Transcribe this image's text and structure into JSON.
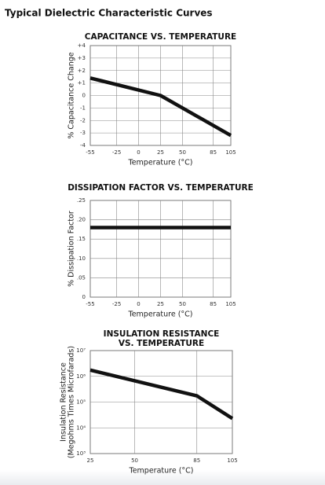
{
  "page_title": "Typical Dielectric Characteristic Curves",
  "chart_data": [
    {
      "type": "line",
      "title": "CAPACITANCE VS. TEMPERATURE",
      "xlabel": "Temperature (°C)",
      "ylabel": [
        "% Capacitance Change"
      ],
      "x": [
        -55,
        25,
        105
      ],
      "values": [
        1.4,
        0,
        -3.2
      ],
      "color": "#111111",
      "xlim": [
        -55,
        105
      ],
      "xticks": [
        -55,
        -25,
        0,
        25,
        50,
        85,
        105
      ],
      "ylim": [
        -4,
        4
      ],
      "yticks": [
        -4,
        -3,
        -2,
        -1,
        0,
        {
          "value": 1,
          "label": "+1"
        },
        {
          "value": 2,
          "label": "+2"
        },
        {
          "value": 3,
          "label": "+3"
        },
        {
          "value": 4,
          "label": "+4"
        }
      ],
      "grid": true
    },
    {
      "type": "line",
      "title": "DISSIPATION FACTOR VS. TEMPERATURE",
      "xlabel": "Temperature (°C)",
      "ylabel": [
        "% Dissipation Factor"
      ],
      "x": [
        -55,
        105
      ],
      "values": [
        0.18,
        0.18
      ],
      "color": "#111111",
      "xlim": [
        -55,
        105
      ],
      "xticks": [
        -55,
        -25,
        0,
        25,
        50,
        85,
        105
      ],
      "ylim": [
        0,
        0.25
      ],
      "yticks": [
        0,
        {
          "value": 0.05,
          "label": ".05"
        },
        {
          "value": 0.1,
          "label": ".10"
        },
        {
          "value": 0.15,
          "label": ".15"
        },
        {
          "value": 0.2,
          "label": ".20"
        },
        {
          "value": 0.25,
          "label": ".25"
        }
      ],
      "grid": true
    },
    {
      "type": "line",
      "title": [
        "INSULATION RESISTANCE",
        "VS. TEMPERATURE"
      ],
      "xlabel": "Temperature (°C)",
      "ylabel": [
        "Insulation Resistance",
        "(Megohms Times Microfarads)"
      ],
      "x": [
        25,
        85,
        105
      ],
      "values": [
        1750000,
        175000,
        23000
      ],
      "color": "#111111",
      "xlim": [
        25,
        105
      ],
      "xticks": [
        25,
        50,
        85,
        105
      ],
      "ylim": [
        1000,
        10000000
      ],
      "log": true,
      "yticks": [
        {
          "value": 1000,
          "label": "10³"
        },
        {
          "value": 10000,
          "label": "10⁴"
        },
        {
          "value": 100000,
          "label": "10⁵"
        },
        {
          "value": 1000000,
          "label": "10⁶"
        },
        {
          "value": 10000000,
          "label": "10⁷"
        }
      ],
      "grid": true
    }
  ]
}
